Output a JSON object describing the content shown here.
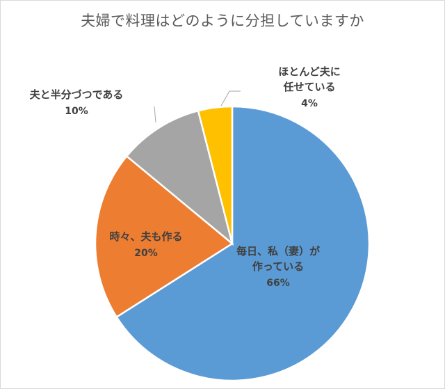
{
  "chart_data": {
    "type": "pie",
    "title": "夫婦で料理はどのように分担していますか",
    "slices": [
      {
        "label_lines": [
          "毎日、私（妻）が",
          "作っている"
        ],
        "value": 66,
        "value_label": "66%",
        "color": "#5b9bd5"
      },
      {
        "label_lines": [
          "時々、夫も作る"
        ],
        "value": 20,
        "value_label": "20%",
        "color": "#ed7d31"
      },
      {
        "label_lines": [
          "夫と半分づつである"
        ],
        "value": 10,
        "value_label": "10%",
        "color": "#a5a5a5"
      },
      {
        "label_lines": [
          "ほとんど夫に",
          "任せている"
        ],
        "value": 4,
        "value_label": "4%",
        "color": "#ffc000"
      }
    ],
    "start_angle_deg": 0,
    "direction": "clockwise",
    "legend": "none"
  }
}
